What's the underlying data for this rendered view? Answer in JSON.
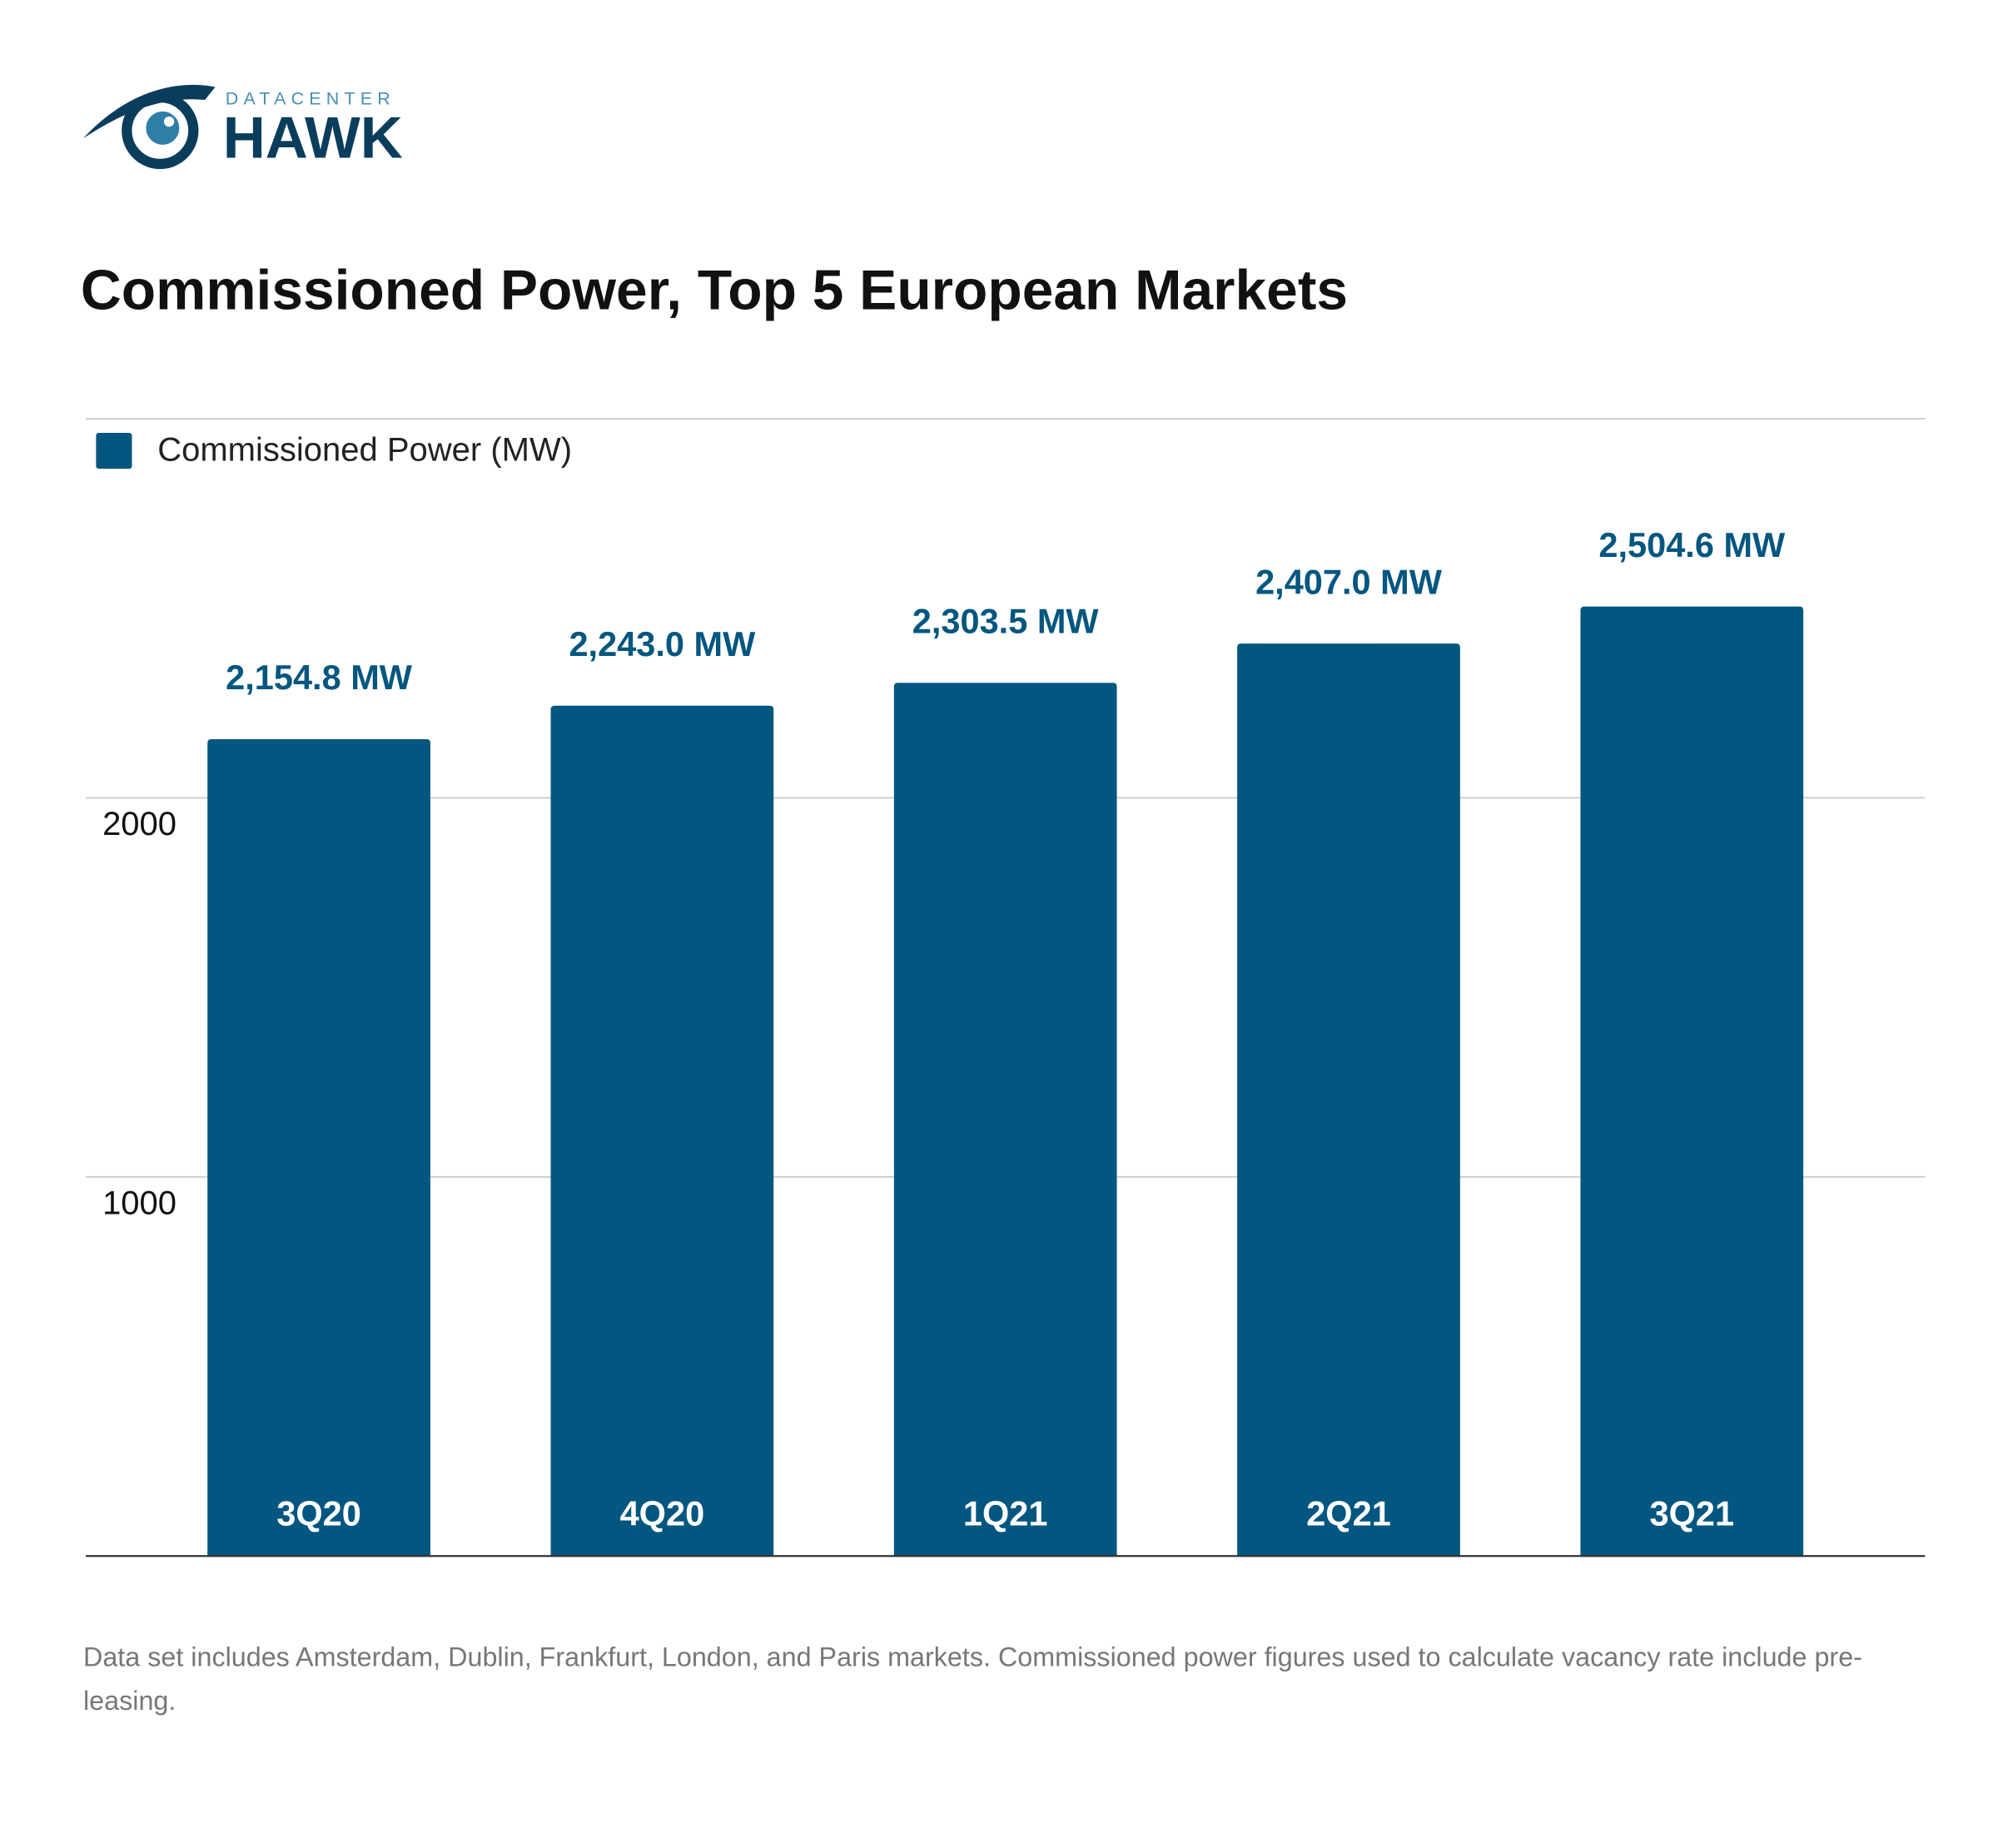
{
  "logo": {
    "top": "DATACENTER",
    "main": "HAWK"
  },
  "chart_data": {
    "type": "bar",
    "title": "Commissioned Power, Top 5 European Markets",
    "categories": [
      "3Q20",
      "4Q20",
      "1Q21",
      "2Q21",
      "3Q21"
    ],
    "series": [
      {
        "name": "Commissioned Power (MW)",
        "color": "#03567f",
        "values": [
          2154.8,
          2243.0,
          2303.5,
          2407.0,
          2504.6
        ],
        "value_labels": [
          "2,154.8 MW",
          "2,243.0 MW",
          "2,303.5 MW",
          "2,407.0 MW",
          "2,504.6 MW"
        ]
      }
    ],
    "ylim": [
      0,
      3000
    ],
    "yticks": [
      1000,
      2000
    ],
    "grid": true,
    "legend": "top-left",
    "note": "Data set includes Amsterdam, Dublin, Frankfurt, London, and Paris markets. Commissioned power figures used to calculate vacancy rate include pre-leasing."
  }
}
